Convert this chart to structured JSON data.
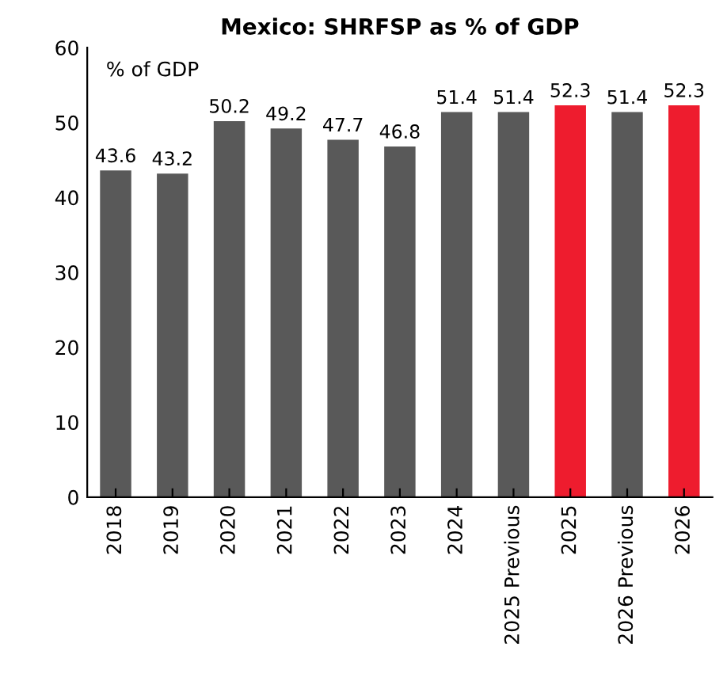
{
  "chart_data": {
    "type": "bar",
    "title": "Mexico: SHRFSP as % of GDP",
    "annotations": [
      "% of GDP"
    ],
    "categories": [
      "2018",
      "2019",
      "2020",
      "2021",
      "2022",
      "2023",
      "2024",
      "2025 Previous",
      "2025",
      "2026 Previous",
      "2026"
    ],
    "values": [
      43.6,
      43.2,
      50.2,
      49.2,
      47.7,
      46.8,
      51.4,
      51.4,
      52.3,
      51.4,
      52.3
    ],
    "colors": [
      "#595959",
      "#595959",
      "#595959",
      "#595959",
      "#595959",
      "#595959",
      "#595959",
      "#595959",
      "#ee1c2e",
      "#595959",
      "#ee1c2e"
    ],
    "ylim": [
      0,
      60
    ],
    "yticks": [
      0,
      10,
      20,
      30,
      40,
      50,
      60
    ],
    "grid": false,
    "data_labels": true
  }
}
